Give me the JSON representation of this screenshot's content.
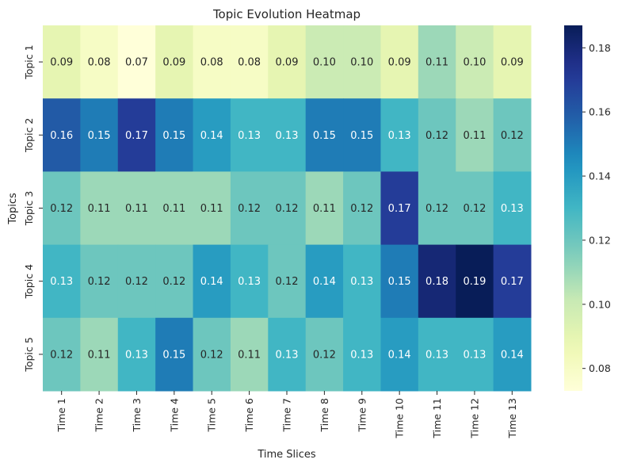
{
  "chart_data": {
    "type": "heatmap",
    "title": "Topic Evolution Heatmap",
    "xlabel": "Time Slices",
    "ylabel": "Topics",
    "x_categories": [
      "Time 1",
      "Time 2",
      "Time 3",
      "Time 4",
      "Time 5",
      "Time 6",
      "Time 7",
      "Time 8",
      "Time 9",
      "Time 10",
      "Time 11",
      "Time 12",
      "Time 13"
    ],
    "y_categories": [
      "Topic 1",
      "Topic 2",
      "Topic 3",
      "Topic 4",
      "Topic 5"
    ],
    "values": [
      [
        0.09,
        0.08,
        0.07,
        0.09,
        0.08,
        0.08,
        0.09,
        0.1,
        0.1,
        0.09,
        0.11,
        0.1,
        0.09
      ],
      [
        0.16,
        0.15,
        0.17,
        0.15,
        0.14,
        0.13,
        0.13,
        0.15,
        0.15,
        0.13,
        0.12,
        0.11,
        0.12
      ],
      [
        0.12,
        0.11,
        0.11,
        0.11,
        0.11,
        0.12,
        0.12,
        0.11,
        0.12,
        0.17,
        0.12,
        0.12,
        0.13
      ],
      [
        0.13,
        0.12,
        0.12,
        0.12,
        0.14,
        0.13,
        0.12,
        0.14,
        0.13,
        0.15,
        0.18,
        0.19,
        0.17
      ],
      [
        0.12,
        0.11,
        0.13,
        0.15,
        0.12,
        0.11,
        0.13,
        0.12,
        0.13,
        0.14,
        0.13,
        0.13,
        0.14
      ]
    ],
    "colormap": "YlGnBu",
    "vmin": 0.073,
    "vmax": 0.187,
    "colorbar_ticks": [
      "0.08",
      "0.10",
      "0.12",
      "0.14",
      "0.16",
      "0.18"
    ],
    "annotations": true,
    "grid": false
  }
}
